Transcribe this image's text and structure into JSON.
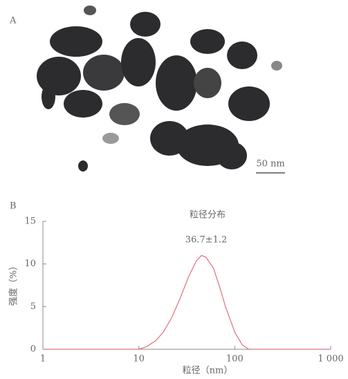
{
  "panel_a": {
    "label": "A",
    "scale_bar": "50 nm"
  },
  "chart_data": {
    "type": "line",
    "panel_label": "B",
    "title": "粒径分布",
    "annotation": "36.7±1.2",
    "x_label": "粒径（nm）",
    "y_label": "强度（%）",
    "x_scale": "log",
    "xlim": [
      1,
      1000
    ],
    "xticks": [
      1,
      10,
      100,
      {
        "value": 1000,
        "label": "1 000"
      }
    ],
    "ylim": [
      0,
      15
    ],
    "yticks": [
      0,
      5,
      10,
      15
    ],
    "series": [
      {
        "color": "#e0707f",
        "x": [
          1,
          10,
          12,
          15,
          18,
          22,
          27,
          33,
          40,
          45,
          50,
          60,
          70,
          80,
          100,
          120,
          140,
          1000
        ],
        "values": [
          0,
          0,
          0.3,
          1,
          2,
          3.7,
          6,
          8.5,
          10.4,
          11,
          10.8,
          9.5,
          7.2,
          5,
          2,
          0.5,
          0,
          0
        ]
      }
    ]
  }
}
